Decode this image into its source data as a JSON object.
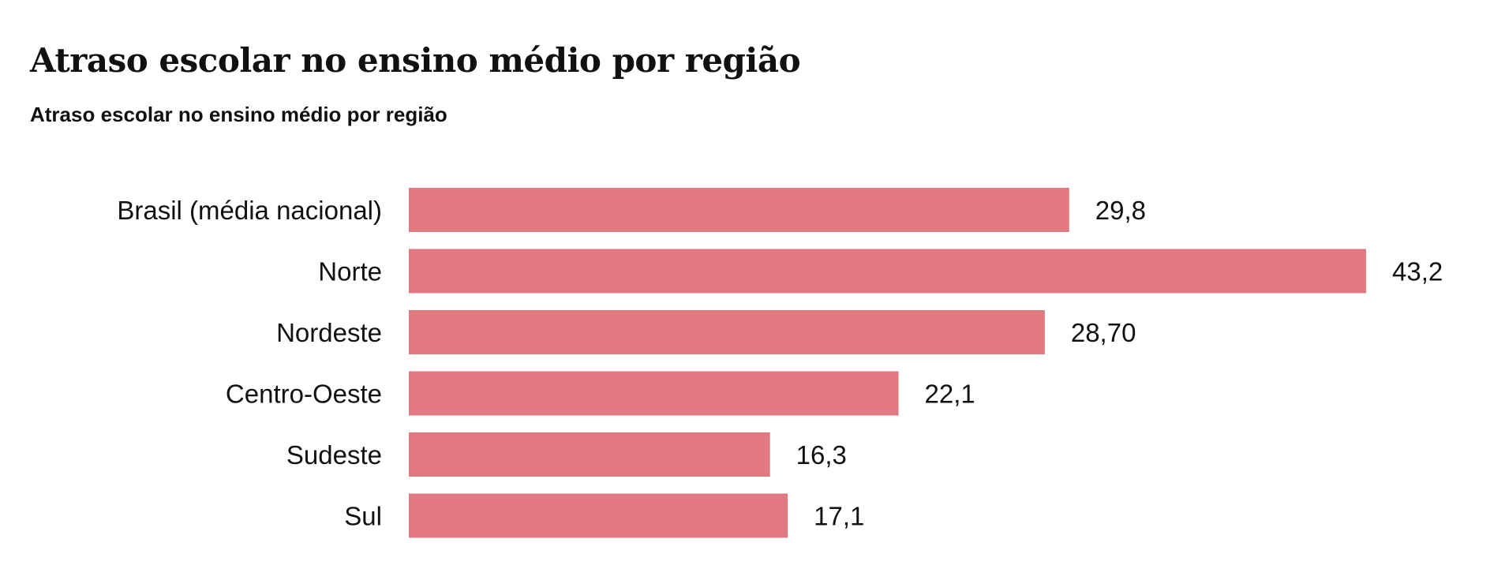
{
  "chart_data": {
    "type": "bar",
    "orientation": "horizontal",
    "title": "Atraso escolar no ensino médio por região",
    "subtitle": "Atraso escolar no ensino médio por região",
    "categories": [
      "Brasil (média nacional)",
      "Norte",
      "Nordeste",
      "Centro-Oeste",
      "Sudeste",
      "Sul"
    ],
    "values": [
      29.8,
      43.2,
      28.7,
      22.1,
      16.3,
      17.1
    ],
    "value_labels": [
      "29,8",
      "43,2",
      "28,70",
      "22,1",
      "16,3",
      "17,1"
    ],
    "xlim": [
      0,
      43.2
    ],
    "grid": false,
    "bar_color": "#e27880"
  }
}
